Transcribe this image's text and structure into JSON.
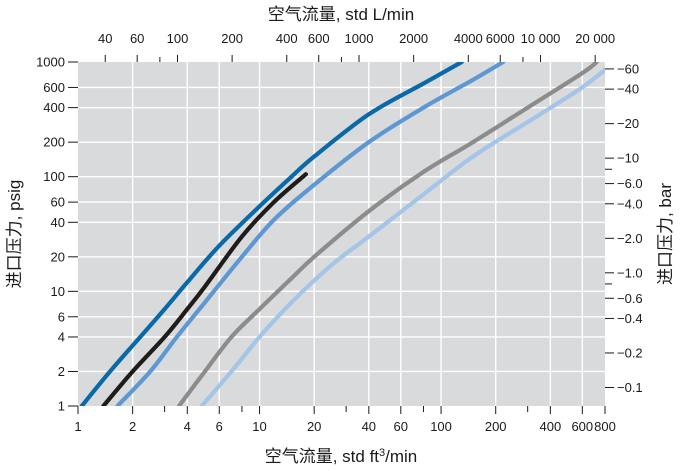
{
  "chart_data": {
    "type": "line",
    "x_scale": "log",
    "y_scale": "log",
    "grid": "on",
    "legend": "none",
    "xlabel": "空气流量, std ft3/min",
    "xlabel_main": "空气流量, std ft",
    "xlabel_sup": "3",
    "xlabel_tail": "/min",
    "x2label": "空气流量, std L/min",
    "ylabel": "进口压力, psig",
    "y2label": "进口压力, bar",
    "xlim": [
      1,
      800
    ],
    "ylim": [
      1,
      1000
    ],
    "x_ticks": [
      "1",
      "2",
      "4",
      "6",
      "10",
      "20",
      "40",
      "60",
      "100",
      "200",
      "400",
      "600",
      "800"
    ],
    "x_tick_values": [
      1,
      2,
      4,
      6,
      10,
      20,
      40,
      60,
      100,
      200,
      400,
      600,
      800
    ],
    "x_minor_ticks": [
      3,
      8,
      30,
      80,
      300
    ],
    "x2_ticks": [
      "40",
      "60",
      "100",
      "200",
      "400",
      "600",
      "1000",
      "2000",
      "4000",
      "6000",
      "10 000",
      "20 000"
    ],
    "x2_tick_values_lpm": [
      40,
      60,
      100,
      200,
      400,
      600,
      1000,
      2000,
      4000,
      6000,
      10000,
      20000
    ],
    "x2_minor_ticks_lpm": [
      80,
      800,
      8000
    ],
    "y_ticks": [
      "1",
      "2",
      "4",
      "6",
      "10",
      "20",
      "40",
      "60",
      "100",
      "200",
      "400",
      "600",
      "1000"
    ],
    "y_tick_values": [
      1,
      2,
      4,
      6,
      10,
      20,
      40,
      60,
      100,
      200,
      400,
      600,
      1000
    ],
    "y2_ticks": [
      "0.1",
      "0.2",
      "0.4",
      "0.6",
      "1.0",
      "2.0",
      "4.0",
      "6.0",
      "10",
      "20",
      "40",
      "60"
    ],
    "y2_tick_values_bar": [
      0.1,
      0.2,
      0.4,
      0.6,
      1.0,
      2.0,
      4.0,
      6.0,
      10,
      20,
      40,
      60
    ],
    "y2_minor_ticks_bar": [
      0.8,
      8
    ],
    "series": [
      {
        "color": "#0a6aa8",
        "points": [
          [
            1.05,
            1
          ],
          [
            1.5,
            2
          ],
          [
            2.2,
            4
          ],
          [
            3,
            7
          ],
          [
            4,
            12
          ],
          [
            6,
            25
          ],
          [
            10,
            55
          ],
          [
            15,
            100
          ],
          [
            20,
            150
          ],
          [
            40,
            350
          ],
          [
            80,
            650
          ],
          [
            130,
            1000
          ]
        ]
      },
      {
        "color": "#1f1c1a",
        "points": [
          [
            1.38,
            1
          ],
          [
            2,
            2
          ],
          [
            3,
            4
          ],
          [
            4,
            7
          ],
          [
            5,
            11
          ],
          [
            8,
            30
          ],
          [
            12,
            60
          ],
          [
            18,
            105
          ]
        ]
      },
      {
        "color": "#5e98d2",
        "points": [
          [
            1.65,
            1
          ],
          [
            2.5,
            2
          ],
          [
            3.5,
            4
          ],
          [
            5,
            8
          ],
          [
            8,
            20
          ],
          [
            12,
            42
          ],
          [
            20,
            85
          ],
          [
            40,
            200
          ],
          [
            80,
            400
          ],
          [
            150,
            700
          ],
          [
            220,
            1000
          ]
        ]
      },
      {
        "color": "#8c8c8c",
        "points": [
          [
            3.6,
            1
          ],
          [
            5,
            2
          ],
          [
            7,
            4
          ],
          [
            10,
            7
          ],
          [
            15,
            13
          ],
          [
            20,
            20
          ],
          [
            40,
            50
          ],
          [
            80,
            110
          ],
          [
            150,
            200
          ],
          [
            300,
            400
          ],
          [
            600,
            800
          ],
          [
            720,
            1000
          ]
        ]
      },
      {
        "color": "#a4c5e8",
        "points": [
          [
            4.8,
            1
          ],
          [
            7,
            2
          ],
          [
            10,
            4
          ],
          [
            15,
            8
          ],
          [
            25,
            17
          ],
          [
            40,
            30
          ],
          [
            80,
            70
          ],
          [
            150,
            150
          ],
          [
            300,
            300
          ],
          [
            600,
            600
          ],
          [
            900,
            1000
          ]
        ]
      }
    ]
  }
}
